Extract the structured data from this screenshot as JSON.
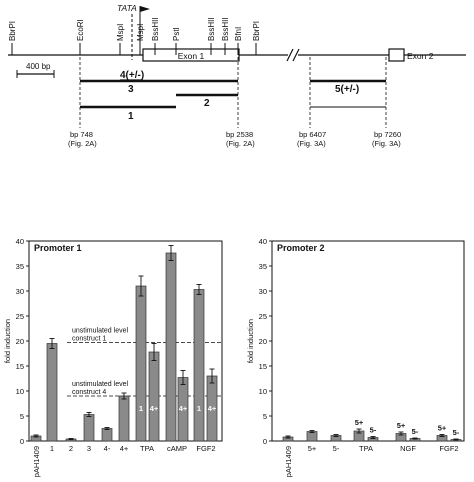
{
  "map": {
    "sites": [
      {
        "id": "bbrpi-left",
        "label": "BbrPI"
      },
      {
        "id": "ecori",
        "label": "EcoRI"
      },
      {
        "id": "mspi-1",
        "label": "MspI"
      },
      {
        "id": "mspi-2",
        "label": "MspI"
      },
      {
        "id": "bsshii-1",
        "label": "BssHII"
      },
      {
        "id": "psti",
        "label": "PstI"
      },
      {
        "id": "bsshii-2",
        "label": "BssHII"
      },
      {
        "id": "bsshii-3",
        "label": "BssHII"
      },
      {
        "id": "bfni",
        "label": "BfnI"
      },
      {
        "id": "bbrpi-right",
        "label": "BbrPI"
      }
    ],
    "tata_label": "TATA",
    "exon1_label": "Exon 1",
    "exon2_label": "Exon 2",
    "scale_label": "400 bp",
    "constructs": [
      {
        "id": "c4",
        "label": "4(+/-)"
      },
      {
        "id": "c3",
        "label": "3"
      },
      {
        "id": "c2",
        "label": "2"
      },
      {
        "id": "c1",
        "label": "1"
      },
      {
        "id": "c5",
        "label": "5(+/-)"
      }
    ],
    "positions": [
      {
        "bp": "bp 748",
        "fig": "(Fig. 2A)"
      },
      {
        "bp": "bp 2538",
        "fig": "(Fig. 2A)"
      },
      {
        "bp": "bp 6407",
        "fig": "(Fig. 3A)"
      },
      {
        "bp": "bp 7260",
        "fig": "(Fig. 3A)"
      }
    ]
  },
  "chart_data": [
    {
      "type": "bar",
      "title": "Promoter 1",
      "ylabel": "fold induction",
      "ylim": [
        0,
        40
      ],
      "yticks": [
        "0",
        "5",
        "10",
        "15",
        "20",
        "25",
        "30",
        "35",
        "40"
      ],
      "categories": [
        "pAH1409",
        "1",
        "2",
        "3",
        "4-",
        "4+",
        "TPA",
        "cAMP",
        "FGF2"
      ],
      "bars": [
        {
          "category": "pAH1409",
          "value": 1.0,
          "error": 0.2
        },
        {
          "category": "1",
          "value": 19.5,
          "error": 1.0
        },
        {
          "category": "2",
          "value": 0.4,
          "error": 0.1
        },
        {
          "category": "3",
          "value": 5.3,
          "error": 0.4
        },
        {
          "category": "4-",
          "value": 2.5,
          "error": 0.2
        },
        {
          "category": "4+",
          "value": 9.0,
          "error": 0.6
        },
        {
          "category": "TPA",
          "label": "1",
          "value": 31.0,
          "error": 2.0
        },
        {
          "category": "TPA",
          "label": "4+",
          "value": 17.8,
          "error": 1.7
        },
        {
          "category": "cAMP",
          "label": "",
          "value": 37.6,
          "error": 1.5
        },
        {
          "category": "cAMP",
          "label": "4+",
          "value": 12.7,
          "error": 1.4
        },
        {
          "category": "FGF2",
          "label": "1",
          "value": 30.3,
          "error": 1.0
        },
        {
          "category": "FGF2",
          "label": "4+",
          "value": 13.0,
          "error": 1.4
        }
      ],
      "reference_lines": [
        {
          "value": 19.7,
          "label_line1": "unstimulated level",
          "label_line2": "construct 1"
        },
        {
          "value": 9.0,
          "label_line1": "unstimulated level",
          "label_line2": "construct 4"
        }
      ]
    },
    {
      "type": "bar",
      "title": "Promoter 2",
      "ylabel": "fold induction",
      "ylim": [
        0,
        40
      ],
      "yticks": [
        "0",
        "5",
        "10",
        "15",
        "20",
        "25",
        "30",
        "35",
        "40"
      ],
      "categories": [
        "pAH1409",
        "5+",
        "5-",
        "TPA",
        "NGF",
        "FGF2"
      ],
      "bars": [
        {
          "category": "pAH1409",
          "value": 0.8,
          "error": 0.2
        },
        {
          "category": "5+",
          "value": 1.9,
          "error": 0.2
        },
        {
          "category": "5-",
          "value": 1.1,
          "error": 0.2
        },
        {
          "category": "TPA",
          "label": "5+",
          "value": 2.0,
          "error": 0.4
        },
        {
          "category": "TPA",
          "label": "5-",
          "value": 0.7,
          "error": 0.2
        },
        {
          "category": "NGF",
          "label": "5+",
          "value": 1.5,
          "error": 0.3
        },
        {
          "category": "NGF",
          "label": "5-",
          "value": 0.5,
          "error": 0.1
        },
        {
          "category": "FGF2",
          "label": "5+",
          "value": 1.1,
          "error": 0.2
        },
        {
          "category": "FGF2",
          "label": "5-",
          "value": 0.3,
          "error": 0.1
        }
      ]
    }
  ]
}
